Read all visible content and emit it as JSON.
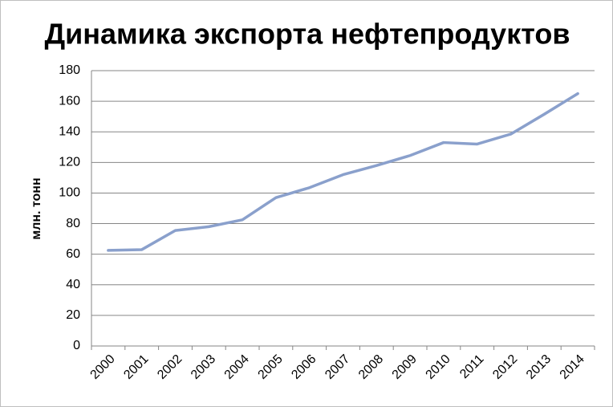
{
  "chart_data": {
    "type": "line",
    "title": "Динамика экспорта нефтепродуктов",
    "y_label": "млн. тонн",
    "categories": [
      "2000",
      "2001",
      "2002",
      "2003",
      "2004",
      "2005",
      "2006",
      "2007",
      "2008",
      "2009",
      "2010",
      "2011",
      "2012",
      "2013",
      "2014"
    ],
    "values": [
      62.5,
      63,
      75.5,
      78,
      82.5,
      97,
      103.5,
      112,
      118,
      124.5,
      133,
      132,
      138.5,
      151.5,
      165
    ],
    "color": "#8aa0cc",
    "ylim": [
      0,
      180
    ],
    "yticks": [
      0,
      20,
      40,
      60,
      80,
      100,
      120,
      140,
      160,
      180
    ],
    "grid": true
  }
}
